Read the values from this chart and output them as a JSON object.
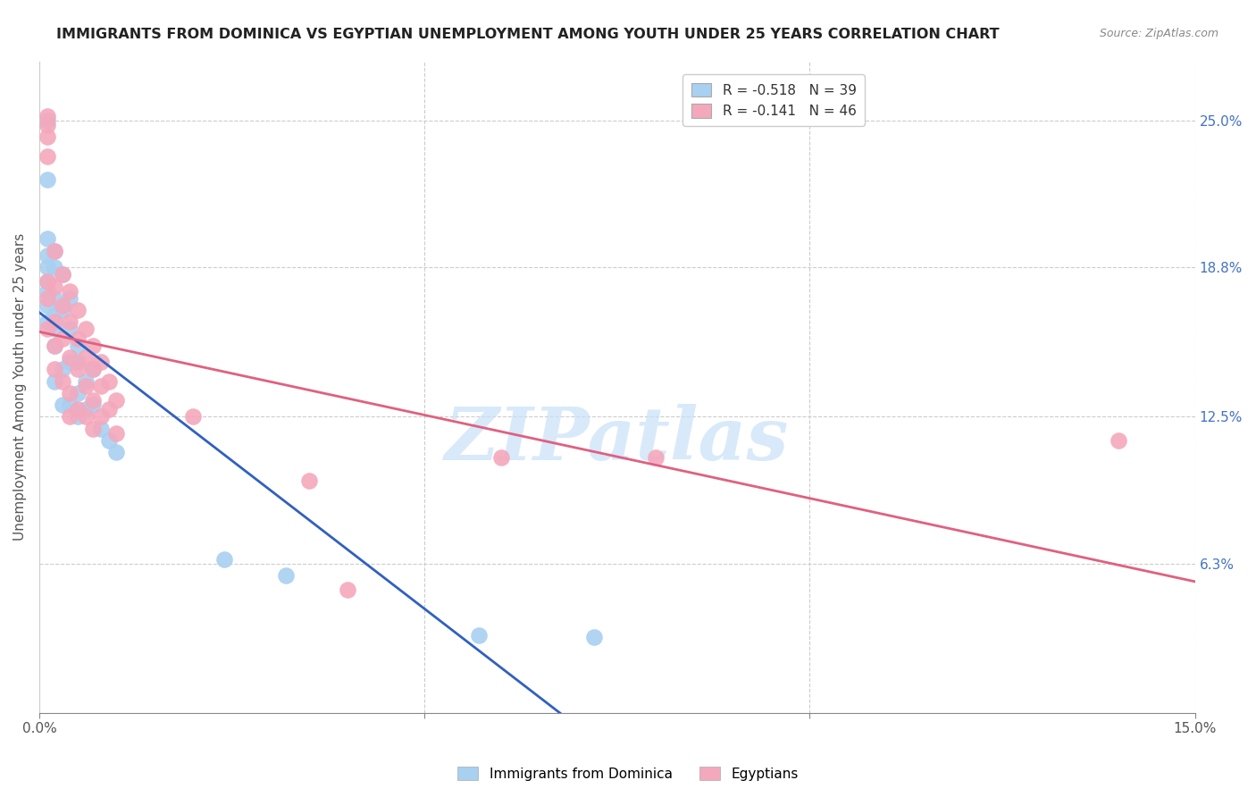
{
  "title": "IMMIGRANTS FROM DOMINICA VS EGYPTIAN UNEMPLOYMENT AMONG YOUTH UNDER 25 YEARS CORRELATION CHART",
  "source": "Source: ZipAtlas.com",
  "ylabel": "Unemployment Among Youth under 25 years",
  "watermark": "ZIPatlas",
  "legend_r1": "R = -0.518",
  "legend_n1": "N = 39",
  "legend_r2": "R = -0.141",
  "legend_n2": "N = 46",
  "color_blue": "#A8D0F0",
  "color_pink": "#F4A8BC",
  "color_blue_line": "#3060C0",
  "color_pink_line": "#E06080",
  "xlim": [
    0.0,
    0.15
  ],
  "ylim": [
    0.0,
    0.275
  ],
  "dominica_x": [
    0.001,
    0.001,
    0.001,
    0.001,
    0.001,
    0.001,
    0.001,
    0.001,
    0.001,
    0.002,
    0.002,
    0.002,
    0.002,
    0.002,
    0.002,
    0.002,
    0.003,
    0.003,
    0.003,
    0.003,
    0.004,
    0.004,
    0.004,
    0.004,
    0.005,
    0.005,
    0.005,
    0.005,
    0.006,
    0.006,
    0.007,
    0.007,
    0.008,
    0.009,
    0.01,
    0.024,
    0.032,
    0.057,
    0.072
  ],
  "dominica_y": [
    0.25,
    0.225,
    0.2,
    0.193,
    0.188,
    0.182,
    0.178,
    0.172,
    0.165,
    0.195,
    0.188,
    0.175,
    0.168,
    0.162,
    0.155,
    0.14,
    0.185,
    0.17,
    0.145,
    0.13,
    0.175,
    0.162,
    0.148,
    0.13,
    0.155,
    0.148,
    0.135,
    0.125,
    0.14,
    0.128,
    0.145,
    0.13,
    0.12,
    0.115,
    0.11,
    0.065,
    0.058,
    0.033,
    0.032
  ],
  "egypt_x": [
    0.001,
    0.001,
    0.001,
    0.001,
    0.001,
    0.001,
    0.001,
    0.002,
    0.002,
    0.002,
    0.002,
    0.002,
    0.003,
    0.003,
    0.003,
    0.003,
    0.004,
    0.004,
    0.004,
    0.004,
    0.004,
    0.005,
    0.005,
    0.005,
    0.005,
    0.006,
    0.006,
    0.006,
    0.006,
    0.007,
    0.007,
    0.007,
    0.007,
    0.008,
    0.008,
    0.008,
    0.009,
    0.009,
    0.01,
    0.01,
    0.02,
    0.035,
    0.04,
    0.06,
    0.08,
    0.14
  ],
  "egypt_y": [
    0.252,
    0.248,
    0.243,
    0.235,
    0.182,
    0.175,
    0.162,
    0.195,
    0.18,
    0.165,
    0.155,
    0.145,
    0.185,
    0.172,
    0.158,
    0.14,
    0.178,
    0.165,
    0.15,
    0.135,
    0.125,
    0.17,
    0.158,
    0.145,
    0.128,
    0.162,
    0.15,
    0.138,
    0.125,
    0.155,
    0.145,
    0.132,
    0.12,
    0.148,
    0.138,
    0.125,
    0.14,
    0.128,
    0.132,
    0.118,
    0.125,
    0.098,
    0.052,
    0.108,
    0.108,
    0.115
  ]
}
